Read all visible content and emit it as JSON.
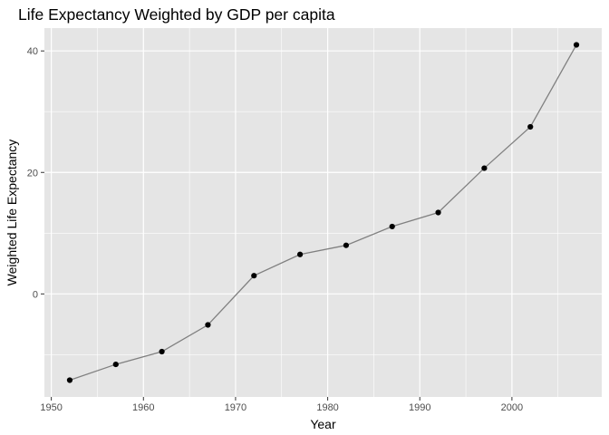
{
  "chart_data": {
    "type": "line",
    "title": "Life Expectancy Weighted by GDP per capita",
    "xlabel": "Year",
    "ylabel": "Weighted Life Expectancy",
    "x": [
      1952,
      1957,
      1962,
      1967,
      1972,
      1977,
      1982,
      1987,
      1992,
      1997,
      2002,
      2007
    ],
    "series": [
      {
        "values": [
          -14.2,
          -11.6,
          -9.5,
          -5.1,
          3.0,
          6.5,
          8.0,
          11.1,
          13.4,
          20.7,
          27.5,
          41.0
        ]
      }
    ],
    "xlim": [
      1949.25,
      2009.75
    ],
    "ylim": [
      -16.96,
      43.76
    ],
    "x_ticks": [
      1950,
      1960,
      1970,
      1980,
      1990,
      2000
    ],
    "x_minor_ticks": [
      1955,
      1965,
      1975,
      1985,
      1995,
      2005
    ],
    "y_ticks": [
      0,
      20,
      40
    ],
    "y_minor_ticks": [
      -10,
      10,
      30
    ],
    "grid": true,
    "legend": "none",
    "colors": {
      "panel_background": "#e5e5e5",
      "grid": "#ffffff",
      "line": "#808080",
      "points": "#000000",
      "tick_label": "#4d4d4d",
      "tick_mark": "#333333"
    }
  }
}
